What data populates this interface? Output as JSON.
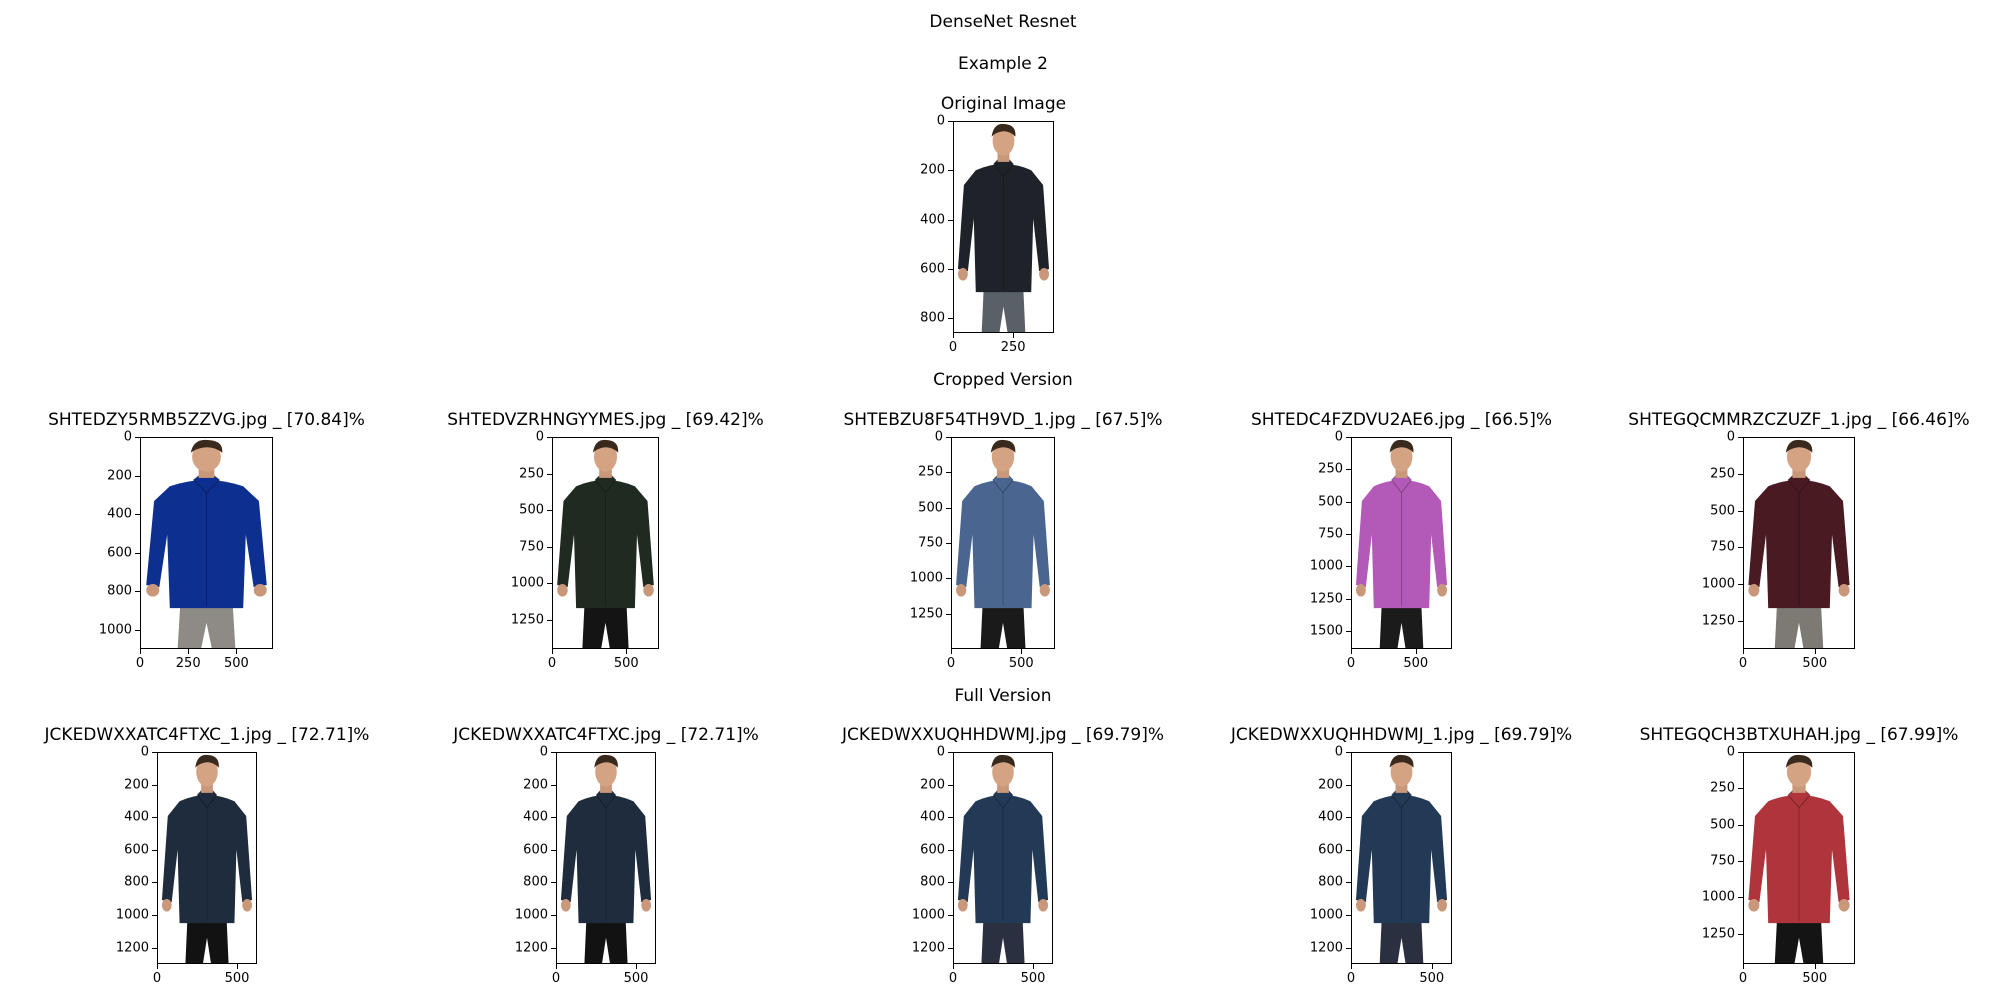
{
  "figure": {
    "title": "DenseNet Resnet",
    "subtitle": "Example 2"
  },
  "sections": {
    "original": "Original Image",
    "cropped": "Cropped Version",
    "full": "Full Version"
  },
  "original": {
    "title": "Original Image",
    "yticks": [
      "0",
      "200",
      "400",
      "600",
      "800"
    ],
    "xticks": [
      "0",
      "250"
    ],
    "shirt_color": "#1f2329",
    "pants_color": "#5a6068"
  },
  "cropped": [
    {
      "title": "SHTEDZY5RMB5ZZVG.jpg _ [70.84]%",
      "yticks": [
        "0",
        "200",
        "400",
        "600",
        "800",
        "1000"
      ],
      "xticks": [
        "0",
        "250",
        "500"
      ],
      "shirt_color": "#0d2f8f",
      "pants_color": "#8e8a86"
    },
    {
      "title": "SHTEDVZRHNGYYMES.jpg _ [69.42]%",
      "yticks": [
        "0",
        "250",
        "500",
        "750",
        "1000",
        "1250"
      ],
      "xticks": [
        "0",
        "500"
      ],
      "shirt_color": "#1f2b20",
      "pants_color": "#141414"
    },
    {
      "title": "SHTEBZU8F54TH9VD_1.jpg _ [67.5]%",
      "yticks": [
        "0",
        "250",
        "500",
        "750",
        "1000",
        "1250"
      ],
      "xticks": [
        "0",
        "500"
      ],
      "shirt_color": "#4a6690",
      "pants_color": "#1a1a1a"
    },
    {
      "title": "SHTEDC4FZDVU2AE6.jpg _ [66.5]%",
      "yticks": [
        "0",
        "250",
        "500",
        "750",
        "1000",
        "1250",
        "1500"
      ],
      "xticks": [
        "0",
        "500"
      ],
      "shirt_color": "#b35ab8",
      "pants_color": "#1b1b1b"
    },
    {
      "title": "SHTEGQCMMRZCZUZF_1.jpg _ [66.46]%",
      "yticks": [
        "0",
        "250",
        "500",
        "750",
        "1000",
        "1250"
      ],
      "xticks": [
        "0",
        "500"
      ],
      "shirt_color": "#4a1a22",
      "pants_color": "#7d7a74"
    }
  ],
  "full": [
    {
      "title": "JCKEDWXXATC4FTXC_1.jpg _ [72.71]%",
      "yticks": [
        "0",
        "200",
        "400",
        "600",
        "800",
        "1000",
        "1200"
      ],
      "xticks": [
        "0",
        "500"
      ],
      "shirt_color": "#1f2c3d",
      "pants_color": "#121212"
    },
    {
      "title": "JCKEDWXXATC4FTXC.jpg _ [72.71]%",
      "yticks": [
        "0",
        "200",
        "400",
        "600",
        "800",
        "1000",
        "1200"
      ],
      "xticks": [
        "0",
        "500"
      ],
      "shirt_color": "#1f2c3d",
      "pants_color": "#121212"
    },
    {
      "title": "JCKEDWXXUQHHDWMJ.jpg _ [69.79]%",
      "yticks": [
        "0",
        "200",
        "400",
        "600",
        "800",
        "1000",
        "1200"
      ],
      "xticks": [
        "0",
        "500"
      ],
      "shirt_color": "#223a56",
      "pants_color": "#2a3040"
    },
    {
      "title": "JCKEDWXXUQHHDWMJ_1.jpg _ [69.79]%",
      "yticks": [
        "0",
        "200",
        "400",
        "600",
        "800",
        "1000",
        "1200"
      ],
      "xticks": [
        "0",
        "500"
      ],
      "shirt_color": "#223a56",
      "pants_color": "#2a3040"
    },
    {
      "title": "SHTEGQCH3BTXUHAH.jpg _ [67.99]%",
      "yticks": [
        "0",
        "250",
        "500",
        "750",
        "1000",
        "1250"
      ],
      "xticks": [
        "0",
        "500"
      ],
      "shirt_color": "#b0343c",
      "pants_color": "#141414"
    }
  ]
}
